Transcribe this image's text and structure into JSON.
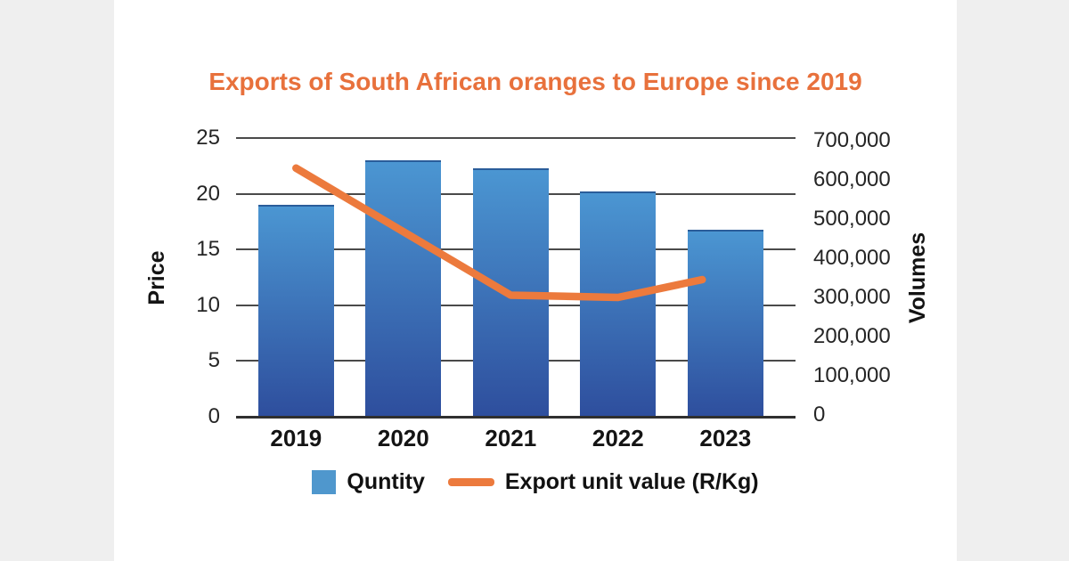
{
  "title": "Exports of South African oranges to Europe since 2019",
  "chart_data": {
    "type": "bar+line",
    "title": "Exports of South African oranges to Europe since 2019",
    "categories": [
      "2019",
      "2020",
      "2021",
      "2022",
      "2023"
    ],
    "series": [
      {
        "name": "Quntity",
        "type": "bar",
        "axis": "right",
        "values": [
          532000,
          644000,
          624000,
          566000,
          469000
        ]
      },
      {
        "name": "Export unit value (R/Kg)",
        "type": "line",
        "axis": "left",
        "values": [
          22.3,
          16.6,
          10.9,
          10.7,
          12.3
        ]
      }
    ],
    "left_axis": {
      "label": "Price",
      "ticks": [
        "25",
        "20",
        "15",
        "10",
        "5",
        "0"
      ],
      "range": [
        0,
        25
      ]
    },
    "right_axis": {
      "label": "Volumes",
      "ticks": [
        "700,000",
        "600,000",
        "500,000",
        "400,000",
        "300,000",
        "200,000",
        "100,000",
        "0"
      ],
      "range": [
        0,
        700000
      ]
    },
    "grid": true,
    "legend_position": "bottom",
    "colors": {
      "title": "#e8713c",
      "bar_top": "#4b96d2",
      "bar_bottom": "#2e4e9d",
      "bar_edge": "#2a5d9a",
      "line": "#ec7a3d",
      "legend_swatch": "#4f97cd",
      "grid": "#4a4a4a",
      "text": "#1c1c1c",
      "page_bg": "#efefef",
      "card_bg": "#ffffff"
    }
  }
}
